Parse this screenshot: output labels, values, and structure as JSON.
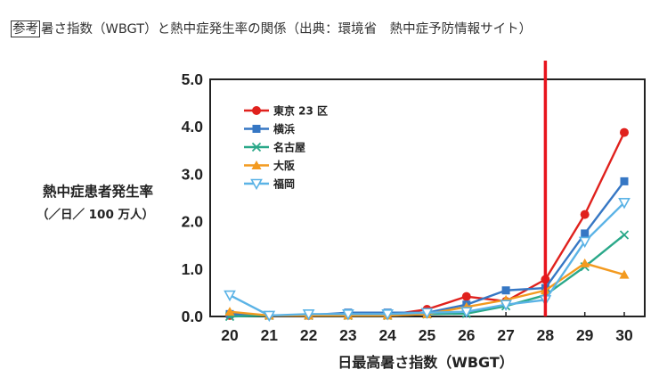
{
  "heading": {
    "tag": "参考",
    "text": "暑さ指数（WBGT）と熱中症発生率の関係（出典：環境省　熱中症予防情報サイト）"
  },
  "chart_data": {
    "type": "line",
    "xlabel": "日最高暑さ指数（WBGT）",
    "ylabel": "熱中症患者発生率",
    "ylabel_unit": "（／日／ 100 万人）",
    "x": [
      20,
      21,
      22,
      23,
      24,
      25,
      26,
      27,
      28,
      29,
      30
    ],
    "xlim": [
      20,
      30
    ],
    "ylim": [
      0,
      5
    ],
    "yticks": [
      "0.0",
      "1.0",
      "2.0",
      "3.0",
      "4.0",
      "5.0"
    ],
    "xticks": [
      "20",
      "21",
      "22",
      "23",
      "24",
      "25",
      "26",
      "27",
      "28",
      "29",
      "30"
    ],
    "legend_position": "top-left",
    "reference_line": {
      "x": 28,
      "color": "#e8141d"
    },
    "series": [
      {
        "name": "東京 23 区",
        "color": "#e0211d",
        "marker": "circle",
        "values": [
          0.02,
          0.02,
          0.02,
          0.03,
          0.03,
          0.15,
          0.42,
          0.32,
          0.78,
          2.15,
          3.88
        ]
      },
      {
        "name": "横浜",
        "color": "#3677c4",
        "marker": "square",
        "values": [
          0.05,
          0.02,
          0.03,
          0.08,
          0.08,
          0.08,
          0.25,
          0.55,
          0.6,
          1.75,
          2.85
        ]
      },
      {
        "name": "名古屋",
        "color": "#2aa889",
        "marker": "x",
        "values": [
          0.0,
          0.02,
          0.02,
          0.02,
          0.02,
          0.05,
          0.06,
          0.22,
          0.45,
          1.05,
          1.72
        ]
      },
      {
        "name": "大阪",
        "color": "#f39a1f",
        "marker": "triangle",
        "values": [
          0.1,
          0.02,
          0.02,
          0.02,
          0.02,
          0.05,
          0.2,
          0.35,
          0.55,
          1.12,
          0.88
        ]
      },
      {
        "name": "福岡",
        "color": "#5bb3e6",
        "marker": "triangle-down",
        "values": [
          0.45,
          0.02,
          0.05,
          0.05,
          0.05,
          0.08,
          0.1,
          0.25,
          0.35,
          1.58,
          2.4
        ]
      }
    ]
  }
}
